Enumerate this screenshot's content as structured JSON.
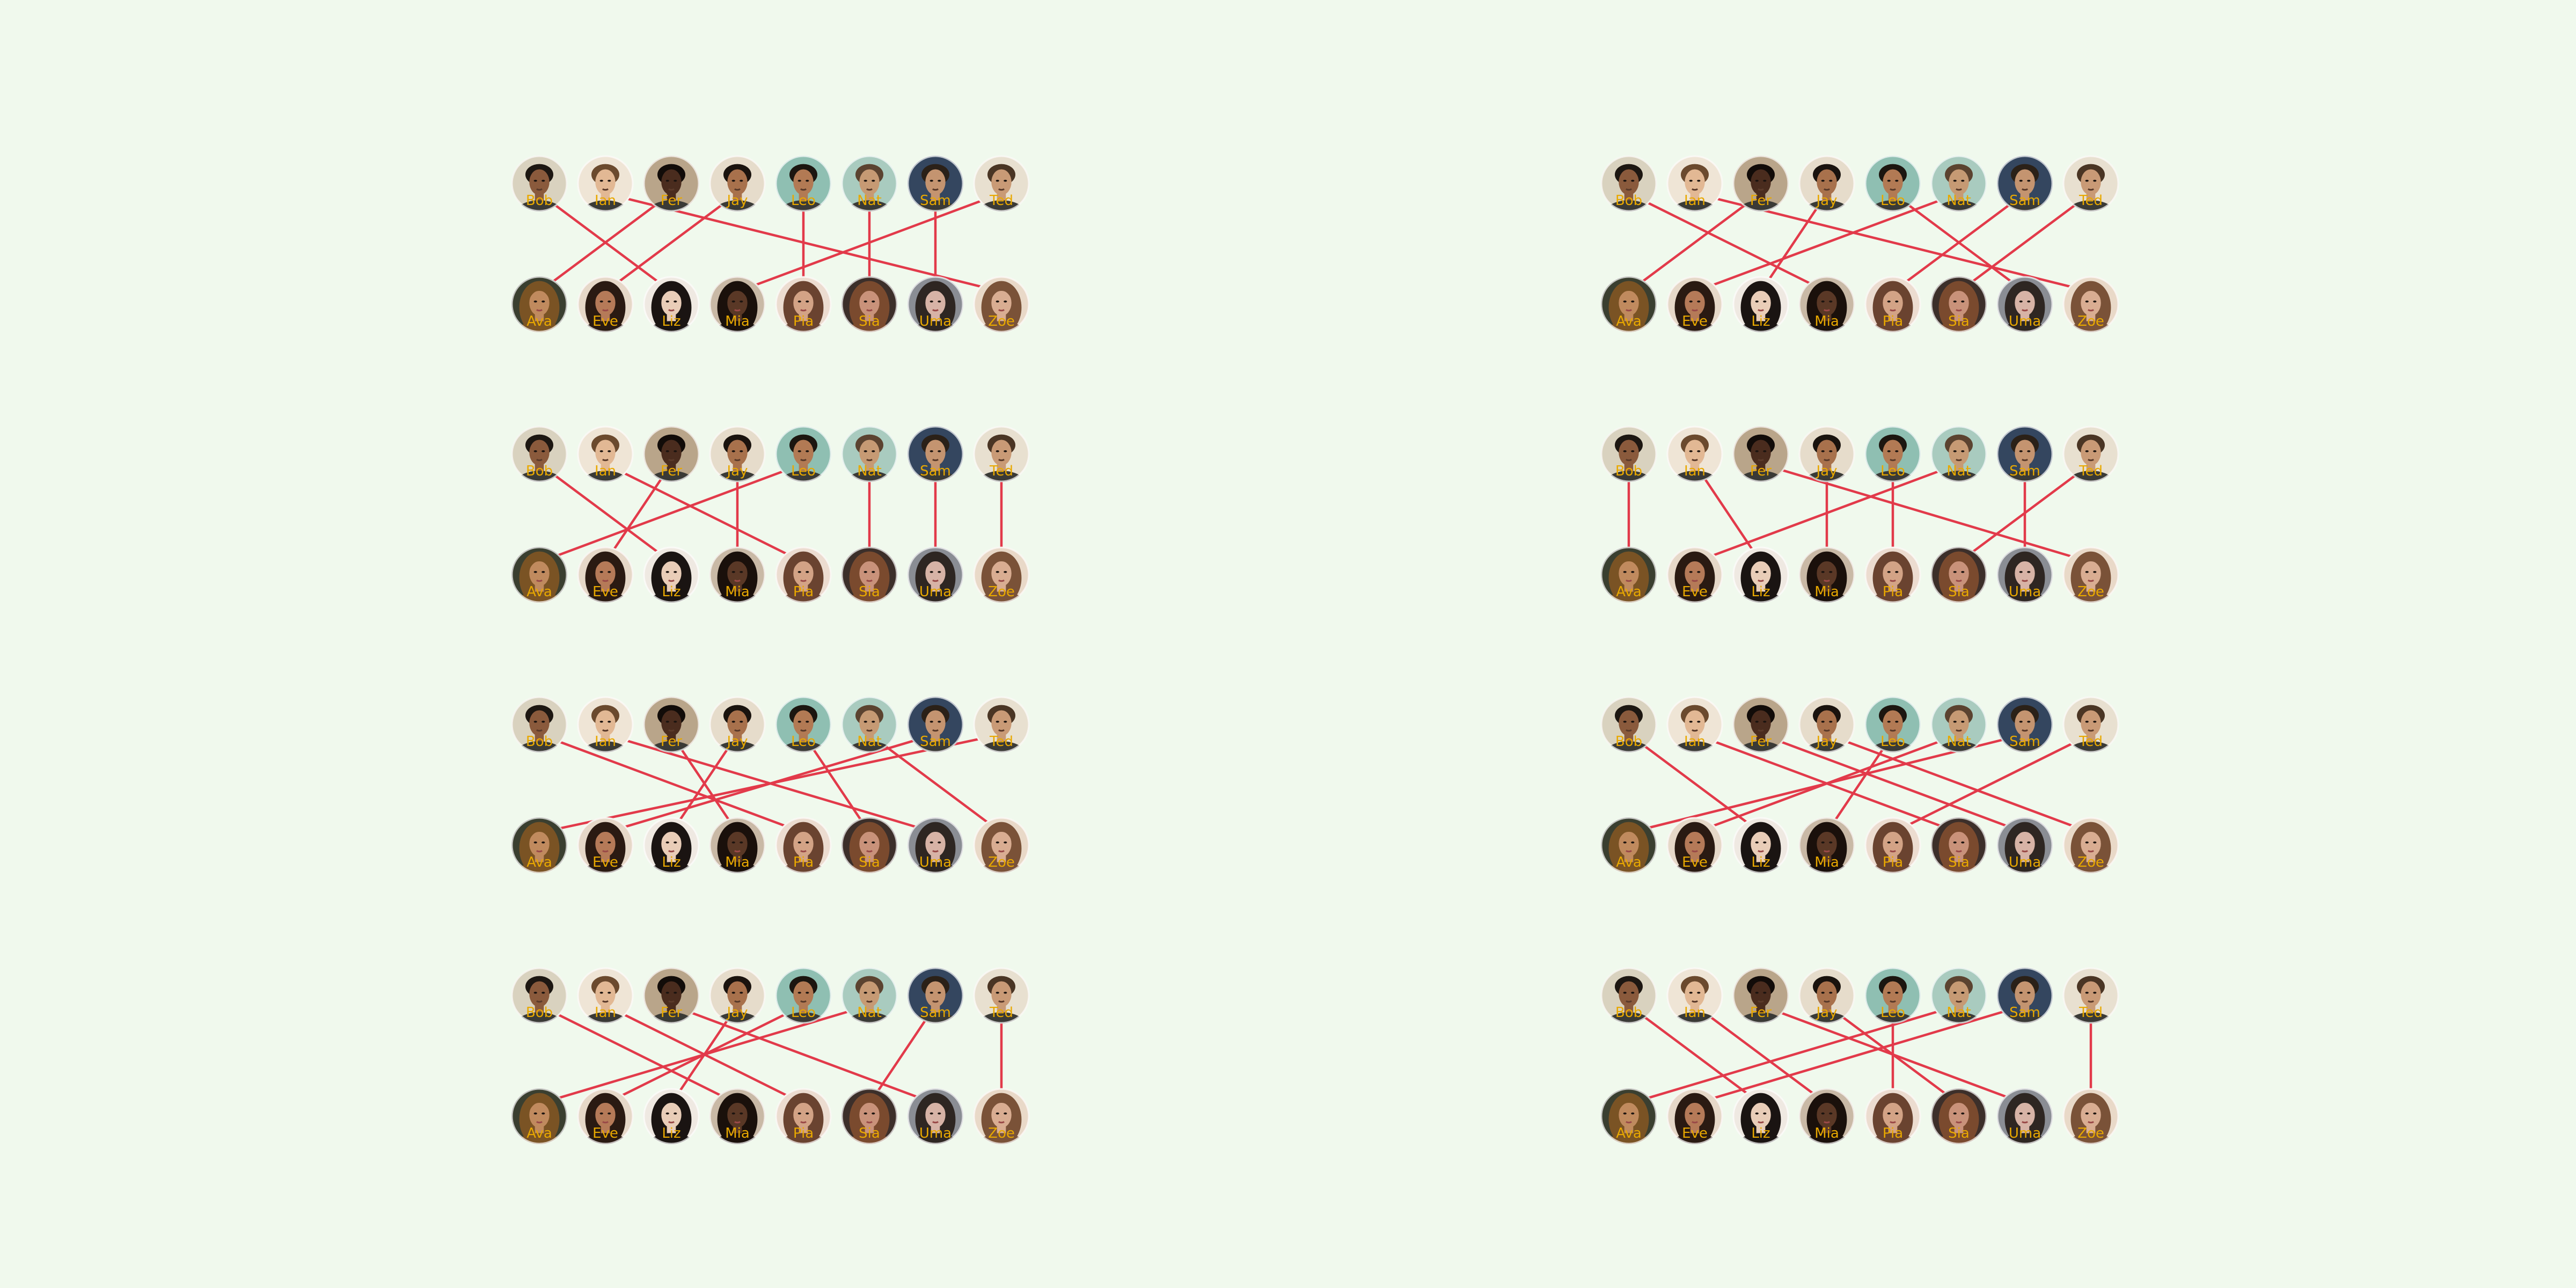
{
  "colors": {
    "background": "#f0f9ed",
    "line": "#e23a4a",
    "label": "#e8a800"
  },
  "top_people": [
    {
      "label": "Bob",
      "icon": "man-portrait-icon",
      "skin": "#8a5a3c",
      "hair": "#1d1712",
      "bg": "#d9d2bf"
    },
    {
      "label": "Ian",
      "icon": "man-portrait-icon",
      "skin": "#e2b894",
      "hair": "#6b4a2e",
      "bg": "#efe5d6"
    },
    {
      "label": "Fer",
      "icon": "man-portrait-icon",
      "skin": "#4a2c1e",
      "hair": "#120c09",
      "bg": "#b9a58a"
    },
    {
      "label": "Jay",
      "icon": "man-portrait-icon",
      "skin": "#a8714c",
      "hair": "#1a130e",
      "bg": "#e6dccb"
    },
    {
      "label": "Leo",
      "icon": "man-portrait-icon",
      "skin": "#b27a54",
      "hair": "#1c1610",
      "bg": "#8fbfb2"
    },
    {
      "label": "Nat",
      "icon": "man-portrait-icon",
      "skin": "#c69a74",
      "hair": "#5b4330",
      "bg": "#a9cbbf"
    },
    {
      "label": "Sam",
      "icon": "man-portrait-icon",
      "skin": "#c49470",
      "hair": "#2b2118",
      "bg": "#34465f"
    },
    {
      "label": "Ted",
      "icon": "man-portrait-icon",
      "skin": "#c99a76",
      "hair": "#4a3524",
      "bg": "#e8e0d0"
    }
  ],
  "bottom_people": [
    {
      "label": "Ava",
      "icon": "woman-portrait-icon",
      "skin": "#c08a5e",
      "hair": "#7a5324",
      "bg": "#3a3f30"
    },
    {
      "label": "Eve",
      "icon": "woman-portrait-icon",
      "skin": "#b57a58",
      "hair": "#2a1a12",
      "bg": "#e6d8c8"
    },
    {
      "label": "Liz",
      "icon": "woman-portrait-icon",
      "skin": "#e9cdb8",
      "hair": "#1a1412",
      "bg": "#efe9e2"
    },
    {
      "label": "Mia",
      "icon": "woman-portrait-icon",
      "skin": "#5a3826",
      "hair": "#1a100b",
      "bg": "#c9b9a6"
    },
    {
      "label": "Pia",
      "icon": "woman-portrait-icon",
      "skin": "#d3a386",
      "hair": "#6a4330",
      "bg": "#ecdcd0"
    },
    {
      "label": "Sia",
      "icon": "woman-portrait-icon",
      "skin": "#c9927a",
      "hair": "#7a4a2e",
      "bg": "#3c2f2a"
    },
    {
      "label": "Uma",
      "icon": "woman-portrait-icon",
      "skin": "#d7b3a6",
      "hair": "#2e2622",
      "bg": "#8a8d94"
    },
    {
      "label": "Zoe",
      "icon": "woman-portrait-icon",
      "skin": "#d9ad92",
      "hair": "#7a5238",
      "bg": "#e9d9c8"
    }
  ],
  "panels": [
    {
      "name": "matching-panel-1",
      "links": [
        [
          0,
          2
        ],
        [
          1,
          7
        ],
        [
          2,
          0
        ],
        [
          3,
          1
        ],
        [
          4,
          4
        ],
        [
          5,
          5
        ],
        [
          6,
          6
        ],
        [
          7,
          3
        ]
      ]
    },
    {
      "name": "matching-panel-2",
      "links": [
        [
          0,
          3
        ],
        [
          1,
          7
        ],
        [
          2,
          0
        ],
        [
          3,
          2
        ],
        [
          4,
          6
        ],
        [
          5,
          1
        ],
        [
          6,
          4
        ],
        [
          7,
          5
        ]
      ]
    },
    {
      "name": "matching-panel-3",
      "links": [
        [
          0,
          2
        ],
        [
          1,
          4
        ],
        [
          2,
          1
        ],
        [
          3,
          3
        ],
        [
          4,
          0
        ],
        [
          5,
          5
        ],
        [
          6,
          6
        ],
        [
          7,
          7
        ]
      ]
    },
    {
      "name": "matching-panel-4",
      "links": [
        [
          0,
          0
        ],
        [
          1,
          2
        ],
        [
          2,
          7
        ],
        [
          3,
          3
        ],
        [
          4,
          4
        ],
        [
          5,
          1
        ],
        [
          6,
          6
        ],
        [
          7,
          5
        ]
      ]
    },
    {
      "name": "matching-panel-5",
      "links": [
        [
          0,
          4
        ],
        [
          1,
          6
        ],
        [
          2,
          3
        ],
        [
          3,
          2
        ],
        [
          4,
          5
        ],
        [
          5,
          7
        ],
        [
          6,
          1
        ],
        [
          7,
          0
        ]
      ]
    },
    {
      "name": "matching-panel-6",
      "links": [
        [
          0,
          2
        ],
        [
          1,
          5
        ],
        [
          2,
          6
        ],
        [
          3,
          7
        ],
        [
          4,
          3
        ],
        [
          5,
          1
        ],
        [
          6,
          0
        ],
        [
          7,
          4
        ]
      ]
    },
    {
      "name": "matching-panel-7",
      "links": [
        [
          0,
          3
        ],
        [
          1,
          4
        ],
        [
          2,
          6
        ],
        [
          3,
          2
        ],
        [
          4,
          1
        ],
        [
          5,
          0
        ],
        [
          6,
          5
        ],
        [
          7,
          7
        ]
      ]
    },
    {
      "name": "matching-panel-8",
      "links": [
        [
          0,
          2
        ],
        [
          1,
          3
        ],
        [
          2,
          6
        ],
        [
          3,
          5
        ],
        [
          4,
          4
        ],
        [
          5,
          0
        ],
        [
          6,
          1
        ],
        [
          7,
          7
        ]
      ]
    }
  ]
}
